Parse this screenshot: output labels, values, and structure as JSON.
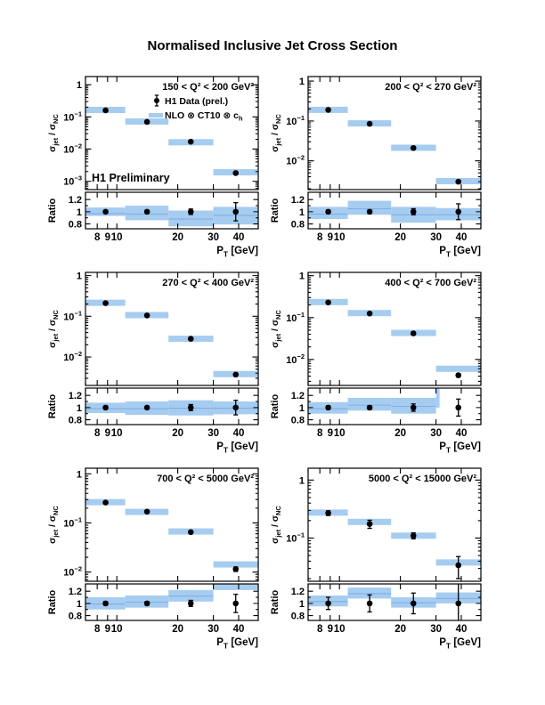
{
  "page_title": "Normalised Inclusive Jet Cross Section",
  "colors": {
    "band": "#a6ccf0",
    "band_center_line": "#7db0e8",
    "marker": "#000000",
    "frame": "#000000"
  },
  "legend": {
    "data_label": "H1 Data (prel.)",
    "theory_label_text": "NLO ⊗ CT10 ⊗ c",
    "theory_label_sub": "h",
    "preliminary": "H1 Preliminary"
  },
  "axis_labels": {
    "x_pre": "P",
    "x_sub": "T",
    "x_post": " [GeV]",
    "y_sigma": "σ",
    "y_sub_jet": "jet",
    "y_mid": " / ",
    "y_sub_nc": "NC",
    "ratio": "Ratio"
  },
  "x_axis": {
    "range": [
      7,
      50
    ],
    "major_ticks": [
      8,
      9,
      10,
      20,
      30,
      40
    ],
    "minor_ticks": [
      7,
      50
    ],
    "bins": [
      [
        7,
        11
      ],
      [
        11,
        18
      ],
      [
        18,
        30
      ],
      [
        30,
        50
      ]
    ]
  },
  "ratio_axis": {
    "range": [
      0.72,
      1.32
    ],
    "major_ticks": [
      0.8,
      1.0,
      1.2
    ],
    "tick_labels": [
      "0.8",
      "1",
      "1.2"
    ],
    "minor_ticks": [
      0.9,
      1.1
    ]
  },
  "chart_data": [
    {
      "type": "scatter",
      "title": "150 < Q² < 200 GeV²",
      "xlabel": "PT [GeV]",
      "ylabel": "sigma_jet / sigma_NC",
      "y_range": [
        0.00055,
        1.8
      ],
      "y_labeled_decades": [
        0,
        -1,
        -2,
        -3
      ],
      "x": [
        8.8,
        14.1,
        23.2,
        38.7
      ],
      "data_y": [
        0.16,
        0.07,
        0.017,
        0.0018
      ],
      "data_yerr": [
        0.006,
        0.0025,
        0.0008,
        0.00015
      ],
      "theory_y": [
        0.165,
        0.072,
        0.0163,
        0.0019
      ],
      "ratio_points": [
        1.0,
        1.0,
        1.0,
        1.0
      ],
      "ratio_err": [
        0.025,
        0.025,
        0.045,
        0.15
      ],
      "ratio_band_lo": [
        0.93,
        0.86,
        0.76,
        0.79
      ],
      "ratio_band_hi": [
        1.07,
        1.1,
        1.02,
        1.08
      ],
      "ratio_band_center": [
        0.97,
        0.96,
        0.88,
        0.94
      ]
    },
    {
      "type": "scatter",
      "title": "200 < Q² < 270 GeV²",
      "xlabel": "PT [GeV]",
      "ylabel": "sigma_jet / sigma_NC",
      "y_range": [
        0.0019,
        1.3
      ],
      "y_labeled_decades": [
        0,
        -1,
        -2
      ],
      "x": [
        8.8,
        14.1,
        23.2,
        38.7
      ],
      "data_y": [
        0.19,
        0.085,
        0.021,
        0.003
      ],
      "data_yerr": [
        0.007,
        0.003,
        0.001,
        0.0002
      ],
      "theory_y": [
        0.19,
        0.087,
        0.0213,
        0.0031
      ],
      "ratio_points": [
        1.0,
        1.0,
        1.0,
        1.0
      ],
      "ratio_err": [
        0.03,
        0.03,
        0.05,
        0.13
      ],
      "ratio_band_lo": [
        0.88,
        0.95,
        0.82,
        0.86
      ],
      "ratio_band_hi": [
        1.08,
        1.18,
        1.08,
        1.06
      ],
      "ratio_band_center": [
        0.96,
        1.05,
        0.95,
        0.95
      ]
    },
    {
      "type": "scatter",
      "title": "270 < Q² < 400 GeV²",
      "xlabel": "PT [GeV]",
      "ylabel": "sigma_jet / sigma_NC",
      "y_range": [
        0.002,
        1.2
      ],
      "y_labeled_decades": [
        0,
        -1,
        -2
      ],
      "x": [
        8.8,
        14.1,
        23.2,
        38.7
      ],
      "data_y": [
        0.21,
        0.105,
        0.028,
        0.0037
      ],
      "data_yerr": [
        0.008,
        0.004,
        0.0012,
        0.0003
      ],
      "theory_y": [
        0.215,
        0.107,
        0.028,
        0.0038
      ],
      "ratio_points": [
        1.0,
        1.0,
        1.0,
        1.0
      ],
      "ratio_err": [
        0.025,
        0.025,
        0.05,
        0.12
      ],
      "ratio_band_lo": [
        0.91,
        0.88,
        0.87,
        0.89
      ],
      "ratio_band_hi": [
        1.08,
        1.1,
        1.12,
        1.1
      ],
      "ratio_band_center": [
        0.98,
        0.98,
        0.99,
        0.99
      ]
    },
    {
      "type": "scatter",
      "title": "400 < Q² < 700 GeV²",
      "xlabel": "PT [GeV]",
      "ylabel": "sigma_jet / sigma_NC",
      "y_range": [
        0.0024,
        1.2
      ],
      "y_labeled_decades": [
        0,
        -1,
        -2
      ],
      "x": [
        8.8,
        14.1,
        23.2,
        38.7
      ],
      "data_y": [
        0.23,
        0.125,
        0.042,
        0.0042
      ],
      "data_yerr": [
        0.008,
        0.005,
        0.002,
        0.0004
      ],
      "theory_y": [
        0.235,
        0.128,
        0.043,
        0.006
      ],
      "ratio_points": [
        1.0,
        1.0,
        1.0,
        1.0
      ],
      "ratio_err": [
        0.03,
        0.03,
        0.06,
        0.14
      ],
      "ratio_band_lo": [
        0.9,
        0.95,
        0.9,
        1.0
      ],
      "ratio_band_hi": [
        1.09,
        1.16,
        1.16,
        1.32
      ],
      "ratio_band_center": [
        0.98,
        1.04,
        1.02,
        null
      ],
      "ratio_band_narrow": [
        false,
        false,
        false,
        true
      ]
    },
    {
      "type": "scatter",
      "title": "700 < Q² < 5000 GeV²",
      "xlabel": "PT [GeV]",
      "ylabel": "sigma_jet / sigma_NC",
      "y_range": [
        0.0065,
        1.3
      ],
      "y_labeled_decades": [
        0,
        -1,
        -2
      ],
      "x": [
        8.8,
        14.1,
        23.2,
        38.7
      ],
      "data_y": [
        0.26,
        0.17,
        0.065,
        0.0115
      ],
      "data_yerr": [
        0.01,
        0.007,
        0.003,
        0.0012
      ],
      "theory_y": [
        0.265,
        0.168,
        0.067,
        0.0143
      ],
      "ratio_points": [
        1.0,
        1.0,
        1.0,
        1.0
      ],
      "ratio_err": [
        0.03,
        0.03,
        0.05,
        0.15
      ],
      "ratio_band_lo": [
        0.9,
        0.93,
        1.03,
        1.22
      ],
      "ratio_band_hi": [
        1.1,
        1.13,
        1.22,
        1.4
      ],
      "ratio_band_center": [
        0.99,
        1.02,
        1.12,
        null
      ]
    },
    {
      "type": "scatter",
      "title": "5000 < Q² < 15000 GeV²",
      "xlabel": "PT [GeV]",
      "ylabel": "sigma_jet / sigma_NC",
      "y_range": [
        0.018,
        1.6
      ],
      "y_labeled_decades": [
        0,
        -1
      ],
      "x": [
        8.8,
        14.1,
        23.2,
        38.7
      ],
      "data_y": [
        0.27,
        0.175,
        0.11,
        0.034
      ],
      "data_yerr": [
        0.025,
        0.028,
        0.013,
        0.014
      ],
      "theory_y": [
        0.275,
        0.19,
        0.11,
        0.038
      ],
      "ratio_points": [
        1.0,
        1.0,
        1.0,
        1.0
      ],
      "ratio_err": [
        0.1,
        0.14,
        0.17,
        0.45
      ],
      "ratio_band_lo": [
        0.95,
        1.08,
        0.93,
        1.0
      ],
      "ratio_band_hi": [
        1.13,
        1.26,
        1.1,
        1.18
      ],
      "ratio_band_center": [
        1.03,
        1.16,
        1.01,
        1.08
      ]
    }
  ]
}
